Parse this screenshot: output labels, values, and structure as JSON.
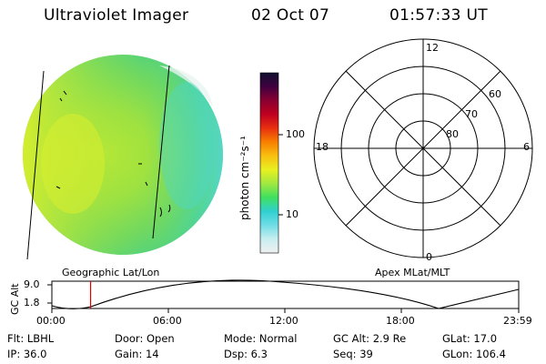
{
  "header": {
    "instrument": "Ultraviolet Imager",
    "date": "02 Oct 07",
    "time": "01:57:33 UT"
  },
  "image_panel": {
    "caption": "Geographic Lat/Lon"
  },
  "colorbar": {
    "unit_label": "photon cm⁻²s⁻¹",
    "ticks": [
      "100",
      "10"
    ],
    "colors": [
      "#f0f0f0",
      "#c8eef0",
      "#70dde5",
      "#30d0d0",
      "#40e060",
      "#a0e840",
      "#e8f020",
      "#f8c010",
      "#f88000",
      "#e83010",
      "#c00020",
      "#8a0030",
      "#400040",
      "#101030"
    ]
  },
  "polar_plot": {
    "caption": "Apex MLat/MLT",
    "mlt_labels": {
      "top": "12",
      "bottom": "0",
      "left": "18",
      "right": "6"
    },
    "lat_labels": [
      "60",
      "70",
      "80"
    ]
  },
  "altitude_plot": {
    "ylabel": "GC Alt",
    "y_ticks": [
      "9.0",
      "1.8"
    ],
    "x_ticks": [
      "00:00",
      "06:00",
      "12:00",
      "18:00",
      "23:59"
    ],
    "current_time_fraction": 0.083
  },
  "info": {
    "row1": [
      "Flt:  LBHL",
      "Door:  Open",
      "Mode:  Normal",
      "GC Alt:  2.9 Re",
      "GLat:   17.0"
    ],
    "row2": [
      "IP:  36.0",
      "Gain:  14",
      "Dsp:      6.3",
      "Seq:  39",
      "GLon:  106.4"
    ]
  }
}
